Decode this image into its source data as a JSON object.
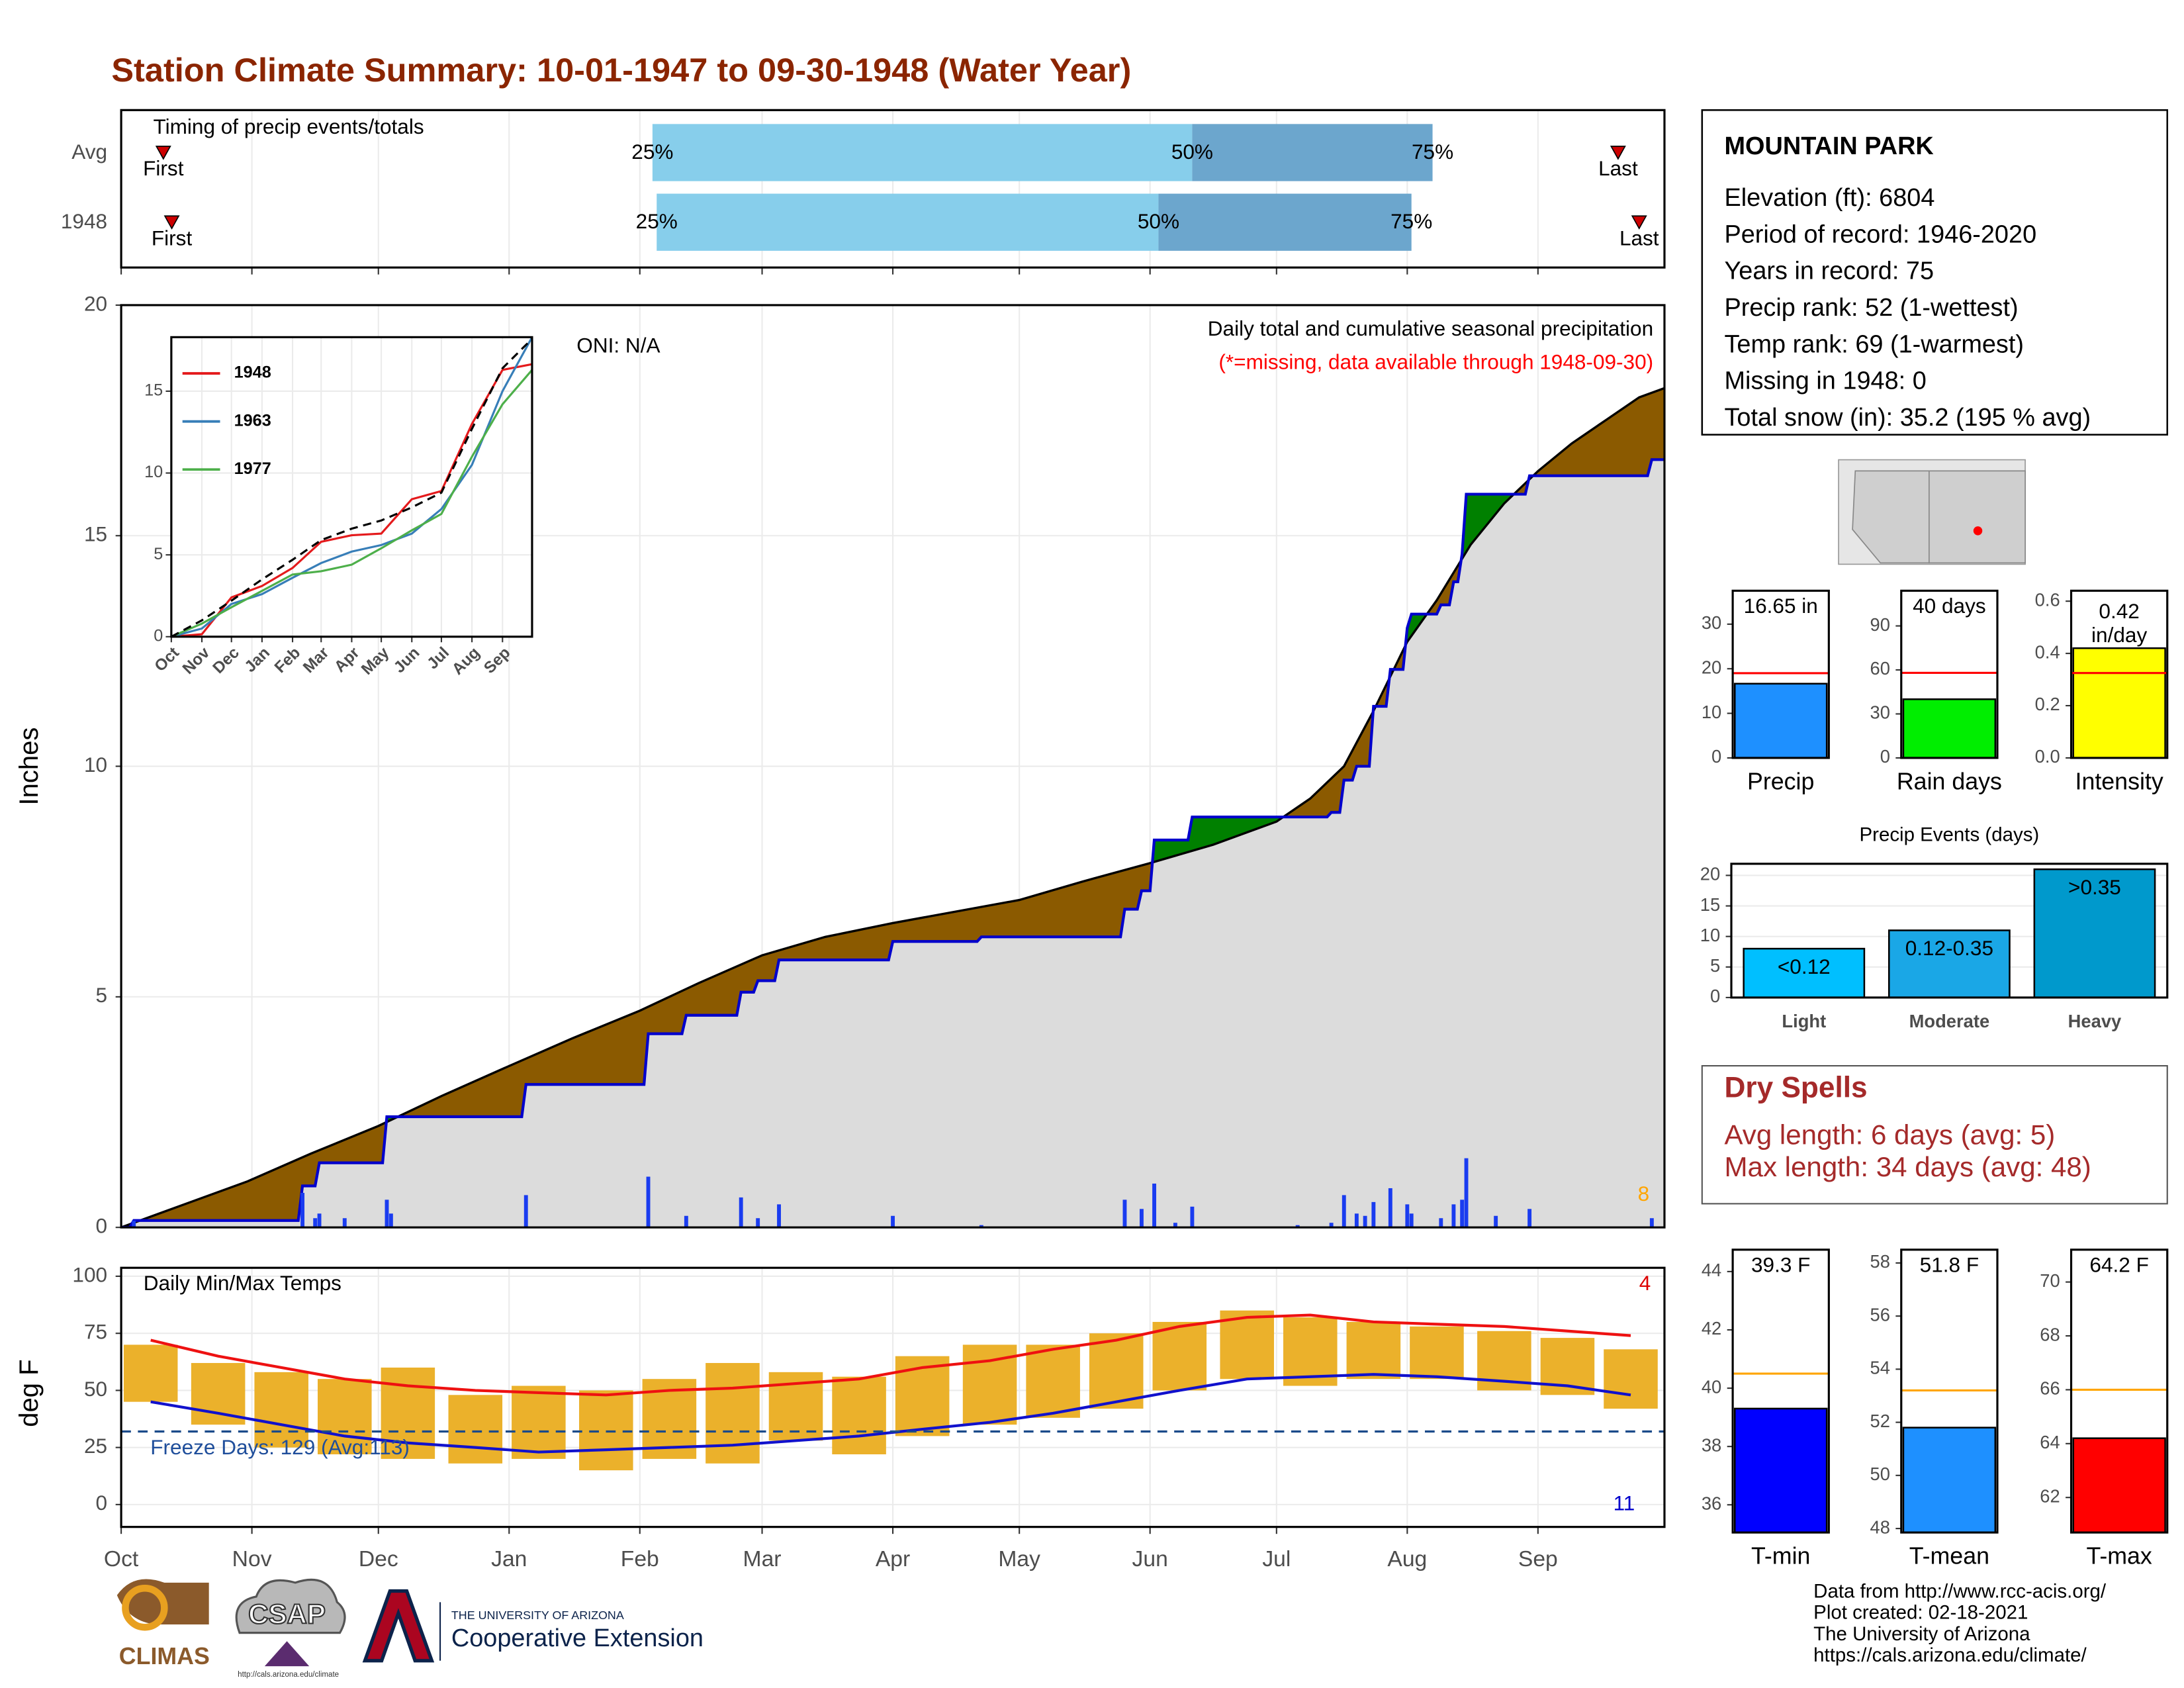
{
  "title": "Station Climate Summary: 10-01-1947 to 09-30-1948 (Water Year)",
  "station": {
    "name": "MOUNTAIN PARK",
    "lines": [
      "Elevation (ft): 6804",
      "Period of record: 1946-2020",
      "Years in record: 75",
      "Precip rank: 52 (1-wettest)",
      "Temp rank: 69 (1-warmest)",
      "Missing in 1948: 0",
      "Total snow (in): 35.2 (195 % avg)"
    ]
  },
  "dry_spells": {
    "title": "Dry Spells",
    "lines": [
      "Avg length: 6 days (avg: 5)",
      "Max length: 34 days (avg: 48)"
    ]
  },
  "footer": [
    "Data from http://www.rcc-acis.org/",
    "Plot created: 02-18-2021",
    "The University of Arizona",
    "https://cals.arizona.edu/climate/"
  ],
  "logos": {
    "climas": "CLIMAS",
    "csap": "CSAP",
    "csap_url": "http://cals.arizona.edu/climate",
    "university": "THE UNIVERSITY OF ARIZONA",
    "extension": "Cooperative Extension"
  },
  "chart_data": [
    {
      "type": "timeline",
      "subtitle": "Timing of precip events/totals",
      "xlim": [
        0,
        366
      ],
      "xticks": [
        0,
        31,
        61,
        92,
        123,
        152,
        183,
        213,
        244,
        274,
        305,
        336
      ],
      "grid": true,
      "event_labels": [
        "First",
        "25%",
        "50%",
        "75%",
        "Last"
      ],
      "colors": [
        "#cc0000",
        "#87ceeb",
        "#6ca6cd"
      ],
      "series": [
        {
          "name": "Avg",
          "values": [
            10,
            126,
            254,
            311,
            355
          ]
        },
        {
          "name": "1948",
          "values": [
            12,
            127,
            246,
            306,
            360
          ]
        }
      ]
    },
    {
      "type": "area",
      "title": "Daily total and cumulative seasonal precipitation",
      "subtitle": "(*=missing, data available through 1948-09-30)",
      "annotation": "ONI: N/A",
      "corner_note": "8",
      "ylabel": "Inches",
      "xlim": [
        0,
        366
      ],
      "xticks": [
        0,
        31,
        61,
        92,
        123,
        152,
        183,
        213,
        244,
        274,
        305,
        336
      ],
      "ylim": [
        0,
        20
      ],
      "yticks": [
        0,
        5,
        10,
        15,
        20
      ],
      "grid": true,
      "fill_colors": {
        "above": "#008000",
        "below": "#8b5a00",
        "base": "#dcdcdc"
      },
      "series": [
        {
          "color": "#0000cc",
          "x": [
            0,
            2,
            3,
            42,
            43,
            46,
            47,
            62,
            63,
            95,
            96,
            124,
            125,
            133,
            134,
            146,
            147,
            150,
            151,
            155,
            156,
            182,
            183,
            203,
            204,
            237,
            238,
            241,
            242,
            244,
            245,
            253,
            254,
            286,
            287,
            289,
            290,
            292,
            293,
            296,
            297,
            300,
            301,
            304,
            305,
            306,
            312,
            313,
            315,
            316,
            317,
            318,
            319,
            333,
            334,
            362,
            363,
            366
          ],
          "values": [
            0,
            0,
            0.15,
            0.15,
            0.9,
            0.9,
            1.4,
            1.4,
            2.4,
            2.4,
            3.1,
            3.1,
            4.2,
            4.2,
            4.6,
            4.6,
            5.1,
            5.1,
            5.35,
            5.35,
            5.8,
            5.8,
            6.2,
            6.2,
            6.3,
            6.3,
            6.9,
            6.9,
            7.3,
            7.3,
            8.4,
            8.4,
            8.9,
            8.9,
            9.0,
            9.0,
            9.7,
            9.7,
            10.0,
            10.0,
            11.3,
            11.3,
            12.1,
            12.1,
            13.0,
            13.3,
            13.3,
            13.5,
            13.5,
            14.0,
            14.0,
            14.6,
            15.9,
            15.9,
            16.3,
            16.3,
            16.65,
            16.65
          ]
        },
        {
          "color": "#000000",
          "x": [
            0,
            15,
            30,
            45,
            61,
            76,
            92,
            107,
            123,
            137,
            152,
            167,
            183,
            198,
            213,
            228,
            244,
            259,
            274,
            282,
            290,
            297,
            305,
            312,
            320,
            328,
            336,
            344,
            352,
            360,
            366
          ],
          "values": [
            0,
            0.5,
            1.0,
            1.6,
            2.2,
            2.85,
            3.5,
            4.1,
            4.7,
            5.3,
            5.9,
            6.3,
            6.6,
            6.85,
            7.1,
            7.5,
            7.9,
            8.3,
            8.8,
            9.3,
            10.0,
            11.2,
            12.7,
            13.6,
            14.8,
            15.7,
            16.4,
            17.0,
            17.5,
            18.0,
            18.2
          ]
        }
      ],
      "daily": {
        "color": "#1a3cf0",
        "x": [
          3,
          43,
          46,
          47,
          53,
          63,
          64,
          96,
          125,
          134,
          147,
          151,
          156,
          183,
          204,
          238,
          242,
          245,
          250,
          254,
          279,
          287,
          290,
          293,
          295,
          297,
          301,
          305,
          306,
          313,
          316,
          318,
          319,
          326,
          334,
          363
        ],
        "values": [
          0.15,
          0.75,
          0.2,
          0.3,
          0.2,
          0.6,
          0.3,
          0.7,
          1.1,
          0.25,
          0.65,
          0.2,
          0.5,
          0.25,
          0.05,
          0.6,
          0.4,
          0.95,
          0.1,
          0.45,
          0.05,
          0.1,
          0.7,
          0.3,
          0.25,
          0.55,
          0.85,
          0.5,
          0.3,
          0.2,
          0.5,
          0.6,
          1.5,
          0.25,
          0.4,
          0.2
        ]
      }
    },
    {
      "type": "line",
      "xlim": [
        0,
        366
      ],
      "xticks": [
        {
          "value": 0,
          "label": "Oct"
        },
        {
          "value": 31,
          "label": "Nov"
        },
        {
          "value": 61,
          "label": "Dec"
        },
        {
          "value": 92,
          "label": "Jan"
        },
        {
          "value": 123,
          "label": "Feb"
        },
        {
          "value": 152,
          "label": "Mar"
        },
        {
          "value": 183,
          "label": "Apr"
        },
        {
          "value": 213,
          "label": "May"
        },
        {
          "value": 244,
          "label": "Jun"
        },
        {
          "value": 274,
          "label": "Jul"
        },
        {
          "value": 305,
          "label": "Aug"
        },
        {
          "value": 336,
          "label": "Sep"
        }
      ],
      "ylim": [
        0,
        18.3
      ],
      "yticks": [
        0,
        5,
        10,
        15
      ],
      "grid": true,
      "series": [
        {
          "name": "1948",
          "color": "#e41a1c",
          "x": [
            0,
            31,
            61,
            92,
            123,
            152,
            183,
            213,
            244,
            274,
            305,
            336,
            366
          ],
          "values": [
            0,
            0.15,
            2.4,
            3.1,
            4.2,
            5.8,
            6.2,
            6.3,
            8.4,
            8.9,
            13.0,
            16.3,
            16.65
          ]
        },
        {
          "name": "1963",
          "color": "#377eb8",
          "x": [
            0,
            31,
            61,
            92,
            123,
            152,
            183,
            213,
            244,
            274,
            305,
            336,
            366
          ],
          "values": [
            0,
            0.5,
            2.0,
            2.6,
            3.6,
            4.5,
            5.2,
            5.6,
            6.3,
            7.8,
            10.5,
            15.0,
            18.3
          ]
        },
        {
          "name": "1977",
          "color": "#4daf4a",
          "x": [
            0,
            31,
            61,
            92,
            123,
            152,
            183,
            213,
            244,
            274,
            305,
            336,
            366
          ],
          "values": [
            0,
            0.8,
            1.8,
            2.8,
            3.8,
            4.0,
            4.4,
            5.4,
            6.5,
            7.5,
            11.0,
            14.2,
            16.3
          ]
        },
        {
          "color": "#000000",
          "dashed": true,
          "x": [
            0,
            31,
            61,
            92,
            123,
            152,
            183,
            213,
            244,
            274,
            305,
            336,
            366
          ],
          "values": [
            0,
            1.0,
            2.2,
            3.5,
            4.7,
            5.9,
            6.6,
            7.1,
            7.9,
            8.8,
            12.7,
            16.4,
            18.2
          ]
        }
      ]
    },
    {
      "type": "range-bar",
      "title": "Daily Min/Max Temps",
      "ylabel": "deg F",
      "annotation": "Freeze Days: 129 (Avg:113)",
      "high_count": "4",
      "low_count": "11",
      "xlim": [
        0,
        366
      ],
      "xticks": [
        {
          "value": 0,
          "label": "Oct"
        },
        {
          "value": 31,
          "label": "Nov"
        },
        {
          "value": 61,
          "label": "Dec"
        },
        {
          "value": 92,
          "label": "Jan"
        },
        {
          "value": 123,
          "label": "Feb"
        },
        {
          "value": 152,
          "label": "Mar"
        },
        {
          "value": 183,
          "label": "Apr"
        },
        {
          "value": 213,
          "label": "May"
        },
        {
          "value": 244,
          "label": "Jun"
        },
        {
          "value": 274,
          "label": "Jul"
        },
        {
          "value": 305,
          "label": "Aug"
        },
        {
          "value": 336,
          "label": "Sep"
        }
      ],
      "ylim": [
        -9.8,
        103.7
      ],
      "yticks": [
        0,
        25,
        50,
        75,
        100
      ],
      "grid": true,
      "freeze_line": 32,
      "bar_color": "#ebb12b",
      "x": [
        7,
        23,
        38,
        53,
        68,
        84,
        99,
        115,
        130,
        145,
        160,
        175,
        190,
        206,
        221,
        236,
        251,
        267,
        282,
        297,
        312,
        328,
        343,
        358
      ],
      "max": [
        70,
        62,
        58,
        55,
        60,
        48,
        52,
        50,
        55,
        62,
        58,
        56,
        65,
        70,
        70,
        75,
        80,
        85,
        82,
        80,
        78,
        76,
        73,
        68
      ],
      "min": [
        45,
        35,
        25,
        22,
        20,
        18,
        20,
        15,
        20,
        18,
        28,
        22,
        30,
        35,
        38,
        42,
        50,
        55,
        52,
        55,
        55,
        50,
        48,
        42
      ],
      "normal_max": {
        "color": "#ee1111",
        "values": [
          72,
          65,
          60,
          55,
          52,
          50,
          49,
          48,
          50,
          51,
          53,
          55,
          60,
          63,
          68,
          72,
          78,
          82,
          83,
          80,
          79,
          78,
          76,
          74
        ]
      },
      "normal_min": {
        "color": "#1111cc",
        "values": [
          45,
          40,
          35,
          30,
          27,
          25,
          23,
          24,
          25,
          26,
          28,
          30,
          33,
          36,
          40,
          45,
          50,
          55,
          56,
          57,
          56,
          54,
          52,
          48
        ]
      }
    },
    {
      "type": "bar",
      "categories": [
        "Precip"
      ],
      "values": [
        16.65
      ],
      "value_labels": [
        "16.65 in"
      ],
      "color": "#1e90ff",
      "normal": 19,
      "normal_color": "#ff0000",
      "ylim": [
        0,
        37.5
      ],
      "yticks": [
        0,
        10,
        20,
        30
      ]
    },
    {
      "type": "bar",
      "categories": [
        "Rain days"
      ],
      "values": [
        40
      ],
      "value_labels": [
        "40 days"
      ],
      "color": "#00ee00",
      "normal": 58,
      "normal_color": "#ff0000",
      "ylim": [
        0,
        114
      ],
      "yticks": [
        0,
        30,
        60,
        90
      ]
    },
    {
      "type": "bar",
      "categories": [
        "Intensity"
      ],
      "values": [
        0.42
      ],
      "value_labels": [
        "0.42 in/day"
      ],
      "color": "#ffff00",
      "normal": 0.325,
      "normal_color": "#ff0000",
      "ylim": [
        0,
        0.64
      ],
      "yticks": [
        {
          "value": 0,
          "label": "0.0"
        },
        0.2,
        0.4,
        0.6
      ]
    },
    {
      "type": "bar",
      "title": "Precip Events (days)",
      "categories": [
        "Light",
        "Moderate",
        "Heavy"
      ],
      "values": [
        8,
        11,
        21
      ],
      "bar_labels": [
        "<0.12",
        "0.12-0.35",
        ">0.35"
      ],
      "colors": [
        "#00bfff",
        "#1aa7e6",
        "#0099cc"
      ],
      "ylim": [
        0,
        21.9
      ],
      "yticks": [
        0,
        5,
        10,
        15,
        20
      ],
      "grid": true
    },
    {
      "type": "bar",
      "categories": [
        "T-min"
      ],
      "values": [
        39.3
      ],
      "value_labels": [
        "39.3 F"
      ],
      "color": "#0000ff",
      "normal": 40.5,
      "normal_color": "#ffa500",
      "ylim": [
        35.05,
        44.75
      ],
      "yticks": [
        36,
        38,
        40,
        42,
        44
      ]
    },
    {
      "type": "bar",
      "categories": [
        "T-mean"
      ],
      "values": [
        51.8
      ],
      "value_labels": [
        "51.8 F"
      ],
      "color": "#1e90ff",
      "normal": 53.2,
      "normal_color": "#ffa500",
      "ylim": [
        47.85,
        58.5
      ],
      "yticks": [
        48,
        50,
        52,
        54,
        56,
        58
      ]
    },
    {
      "type": "bar",
      "categories": [
        "T-max"
      ],
      "values": [
        64.2
      ],
      "value_labels": [
        "64.2 F"
      ],
      "color": "#ff0000",
      "normal": 66.0,
      "normal_color": "#ffa500",
      "ylim": [
        60.7,
        71.2
      ],
      "yticks": [
        62,
        64,
        66,
        68,
        70
      ]
    }
  ]
}
